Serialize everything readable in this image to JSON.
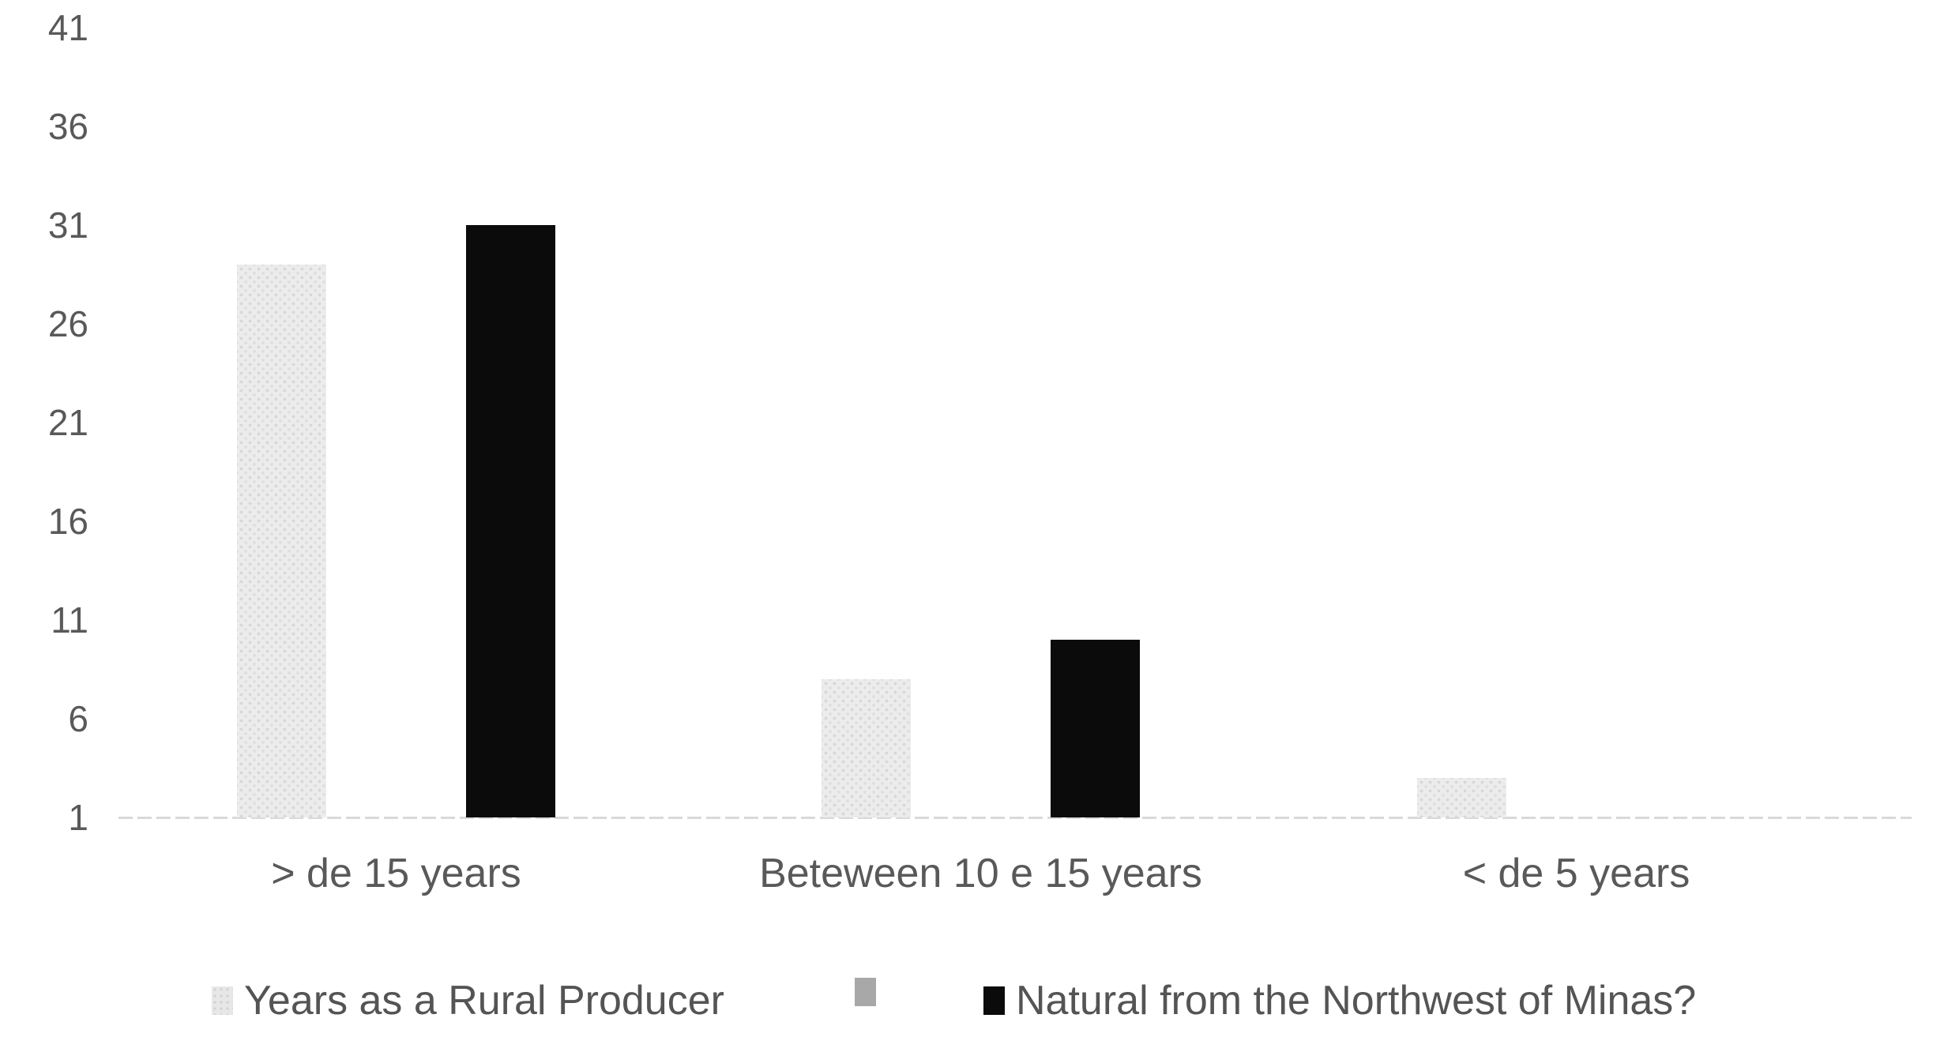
{
  "chart_data": {
    "type": "bar",
    "title": "",
    "xlabel": "",
    "ylabel": "",
    "categories": [
      "> de 15 years",
      "Beteween 10 e 15 years",
      "< de 5 years"
    ],
    "series": [
      {
        "name": "Years as a Rural Producer",
        "color": "#ececec",
        "pattern": "dots",
        "values": [
          29,
          8,
          3
        ]
      },
      {
        "name": "",
        "color": "#a8a8a8",
        "pattern": "solid-gray",
        "values": [
          null,
          null,
          null
        ]
      },
      {
        "name": "Natural from the Northwest of Minas?",
        "color": "#0b0b0b",
        "pattern": "solid",
        "values": [
          31,
          10,
          null
        ]
      }
    ],
    "yticks": [
      41,
      36,
      31,
      26,
      21,
      16,
      11,
      6,
      1
    ],
    "ylim": [
      1,
      41
    ],
    "grid": false,
    "legend_position": "bottom",
    "axis_color": "#d9d9d9",
    "tick_text_color": "#595959"
  }
}
